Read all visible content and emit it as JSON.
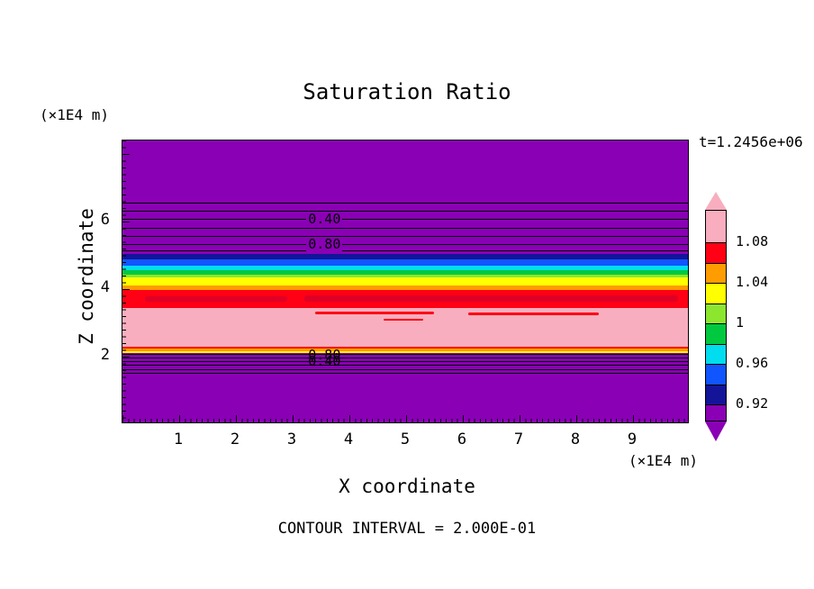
{
  "title": "Saturation Ratio",
  "time_label": "t=1.2456e+06",
  "contour_note": "CONTOUR INTERVAL = 2.000E-01",
  "axes": {
    "x_label": "X coordinate",
    "y_label": "Z coordinate",
    "x_unit": "(×1E4 m)",
    "y_unit": "(×1E4 m)",
    "x_ticks": [
      1,
      2,
      3,
      4,
      5,
      6,
      7,
      8,
      9
    ],
    "y_ticks": [
      2,
      4,
      6
    ]
  },
  "colorbar": {
    "tick_labels": [
      {
        "text": "1.08",
        "value": 1.08
      },
      {
        "text": "1.04",
        "value": 1.04
      },
      {
        "text": "1",
        "value": 1.0
      },
      {
        "text": "0.96",
        "value": 0.96
      },
      {
        "text": "0.92",
        "value": 0.92
      }
    ],
    "arrow_colors": {
      "top": "#F8AEBE",
      "bottom": "#8A00B5"
    },
    "segments": [
      {
        "color": "#F8AEBE",
        "v_hi": 1.111,
        "v_lo": 1.08,
        "range": ">1.08"
      },
      {
        "color": "#FF0014",
        "v_hi": 1.08,
        "v_lo": 1.06,
        "range": "1.06-1.08"
      },
      {
        "color": "#FF9C00",
        "v_hi": 1.06,
        "v_lo": 1.04,
        "range": "1.04-1.06"
      },
      {
        "color": "#FFFF00",
        "v_hi": 1.04,
        "v_lo": 1.02,
        "range": "1.02-1.04"
      },
      {
        "color": "#8CE62E",
        "v_hi": 1.02,
        "v_lo": 1.0,
        "range": "1.00-1.02"
      },
      {
        "color": "#00C940",
        "v_hi": 1.0,
        "v_lo": 0.98,
        "range": "0.98-1.00"
      },
      {
        "color": "#00DDEE",
        "v_hi": 0.98,
        "v_lo": 0.96,
        "range": "0.96-0.98"
      },
      {
        "color": "#1155FF",
        "v_hi": 0.96,
        "v_lo": 0.94,
        "range": "0.94-0.96"
      },
      {
        "color": "#141499",
        "v_hi": 0.94,
        "v_lo": 0.92,
        "range": "0.92-0.94"
      },
      {
        "color": "#8A00B5",
        "v_hi": 0.92,
        "v_lo": 0.902,
        "range": "<0.92"
      }
    ]
  },
  "chart_data": {
    "type": "heatmap",
    "title": "Saturation Ratio",
    "xlabel": "X coordinate (×1E4 m)",
    "ylabel": "Z coordinate (×1E4 m)",
    "xlim": [
      0,
      10
    ],
    "ylim": [
      0,
      8.4
    ],
    "time": "t=1.2456e+06",
    "contour_interval": 0.2,
    "legend_position": "right-colorbar",
    "bands": [
      {
        "z_hi": 8.4,
        "z_lo": 5.04,
        "value": "<0.92",
        "color": "#8A00B5"
      },
      {
        "z_hi": 5.04,
        "z_lo": 4.88,
        "value": "0.92-0.94",
        "color": "#141499"
      },
      {
        "z_hi": 4.88,
        "z_lo": 4.69,
        "value": "0.94-0.96",
        "color": "#1155FF"
      },
      {
        "z_hi": 4.69,
        "z_lo": 4.56,
        "value": "0.96-0.98",
        "color": "#00DDEE"
      },
      {
        "z_hi": 4.56,
        "z_lo": 4.43,
        "value": "0.98-1.00",
        "color": "#00C940"
      },
      {
        "z_hi": 4.43,
        "z_lo": 4.35,
        "value": "1.00-1.02",
        "color": "#8CE62E"
      },
      {
        "z_hi": 4.35,
        "z_lo": 4.11,
        "value": "1.02-1.04",
        "color": "#FFFF00"
      },
      {
        "z_hi": 4.11,
        "z_lo": 3.97,
        "value": "1.04-1.06",
        "color": "#FF9C00"
      },
      {
        "z_hi": 3.97,
        "z_lo": 3.44,
        "value": "1.06-1.08",
        "color": "#FF0014"
      },
      {
        "z_hi": 3.44,
        "z_lo": 2.29,
        "value": ">1.08",
        "color": "#F8AEBE"
      },
      {
        "z_hi": 2.29,
        "z_lo": 2.24,
        "value": "1.06-1.08",
        "color": "#FF0014"
      },
      {
        "z_hi": 2.24,
        "z_lo": 2.16,
        "value": "1.04-1.06",
        "color": "#FF9C00"
      },
      {
        "z_hi": 2.16,
        "z_lo": 2.11,
        "value": "1.02-1.04",
        "color": "#FFFF00"
      },
      {
        "z_hi": 2.11,
        "z_lo": 0.0,
        "value": "<0.92",
        "color": "#8A00B5"
      }
    ],
    "features": [
      {
        "color": "#E00025",
        "x_from": 3.2,
        "x_to": 9.8,
        "z_hi": 3.82,
        "z_lo": 3.62
      },
      {
        "color": "#E00025",
        "x_from": 0.4,
        "x_to": 2.9,
        "z_hi": 3.78,
        "z_lo": 3.64
      },
      {
        "color": "#FF0014",
        "x_from": 3.4,
        "x_to": 5.5,
        "z_hi": 3.34,
        "z_lo": 3.26
      },
      {
        "color": "#FF0014",
        "x_from": 6.1,
        "x_to": 8.4,
        "z_hi": 3.31,
        "z_lo": 3.23
      },
      {
        "color": "#FF0014",
        "x_from": 4.6,
        "x_to": 5.3,
        "z_hi": 3.13,
        "z_lo": 3.07
      }
    ],
    "contour_lines": [
      6.56,
      6.32,
      6.08,
      5.81,
      5.57,
      5.33,
      5.15,
      2.08,
      1.97,
      1.87,
      1.76,
      1.63,
      1.52
    ],
    "contour_labels": [
      {
        "text": "0.40",
        "x": 3.56,
        "z": 6.08,
        "bg": "#8A00B5"
      },
      {
        "text": "0.80",
        "x": 3.56,
        "z": 5.33,
        "bg": "#8A00B5"
      },
      {
        "text": "0.80",
        "x": 3.56,
        "z": 2.06
      },
      {
        "text": "0.40",
        "x": 3.56,
        "z": 1.88
      }
    ]
  }
}
